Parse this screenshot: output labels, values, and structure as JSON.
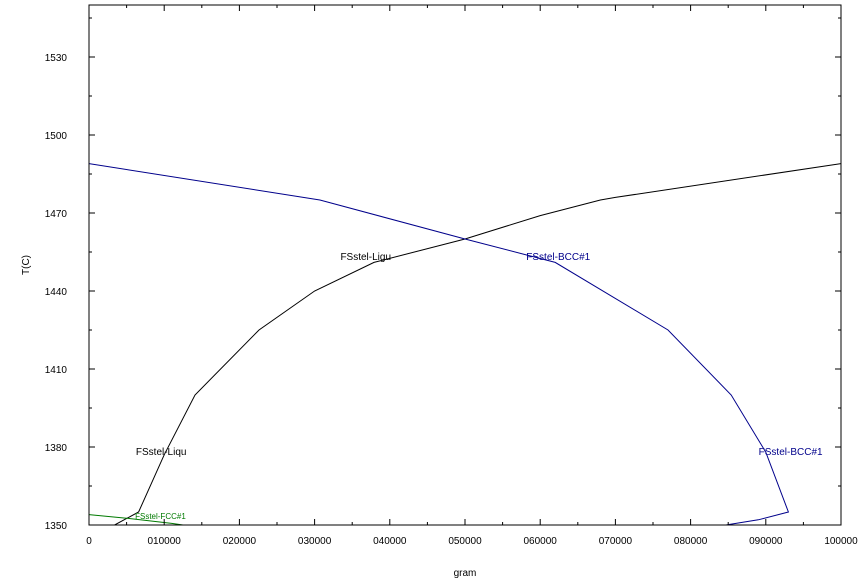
{
  "chart_data": {
    "type": "line",
    "title": "",
    "xlabel": "gram",
    "ylabel": "T(C)",
    "xlim": [
      0,
      100000
    ],
    "ylim": [
      1350,
      1550
    ],
    "x_ticks": [
      0,
      10000,
      20000,
      30000,
      40000,
      50000,
      60000,
      70000,
      80000,
      90000,
      100000
    ],
    "x_tick_labels": [
      "0",
      "010000",
      "020000",
      "030000",
      "040000",
      "050000",
      "060000",
      "070000",
      "080000",
      "090000",
      "100000"
    ],
    "y_ticks": [
      1350,
      1380,
      1410,
      1440,
      1470,
      1500,
      1530
    ],
    "y_tick_labels": [
      "1350",
      "1380",
      "1410",
      "1440",
      "1470",
      "1500",
      "1530"
    ],
    "grid": false,
    "legend": "none",
    "series": [
      {
        "name": "FSstel-Liqu",
        "color": "#000000",
        "points": [
          [
            3400,
            1350
          ],
          [
            6600,
            1355
          ],
          [
            10000,
            1377
          ],
          [
            14100,
            1400
          ],
          [
            22600,
            1425
          ],
          [
            30000,
            1440
          ],
          [
            37900,
            1451
          ],
          [
            50000,
            1460
          ],
          [
            60000,
            1469
          ],
          [
            68000,
            1475
          ],
          [
            70000,
            1476
          ],
          [
            100000,
            1489
          ]
        ]
      },
      {
        "name": "FSstel-BCC#1",
        "color": "#00008b",
        "points": [
          [
            0,
            1489
          ],
          [
            30700,
            1475
          ],
          [
            50000,
            1460
          ],
          [
            62000,
            1451
          ],
          [
            77000,
            1425
          ],
          [
            85400,
            1400
          ],
          [
            90000,
            1378
          ],
          [
            93000,
            1355
          ],
          [
            89000,
            1352
          ],
          [
            84700,
            1350
          ]
        ]
      },
      {
        "name": "FSstel-FCC#1",
        "color": "#007a00",
        "points": [
          [
            0,
            1354
          ],
          [
            5000,
            1352.6
          ],
          [
            11000,
            1350.6
          ],
          [
            12500,
            1350
          ]
        ]
      }
    ],
    "annotations": [
      {
        "text": "FSstel-Ligu",
        "x": 36800,
        "y": 1453,
        "color": "#000000"
      },
      {
        "text": "FSstel-BCC#1",
        "x": 62400,
        "y": 1453,
        "color": "#00008b"
      },
      {
        "text": "FSstel-Liqu",
        "x": 9600,
        "y": 1378,
        "color": "#000000"
      },
      {
        "text": "FSstel-BCC#1",
        "x": 93300,
        "y": 1378,
        "color": "#00008b"
      },
      {
        "text": "FSstel-FCC#1",
        "x": 9500,
        "y": 1353.5,
        "color": "#007a00",
        "small": true
      }
    ]
  }
}
